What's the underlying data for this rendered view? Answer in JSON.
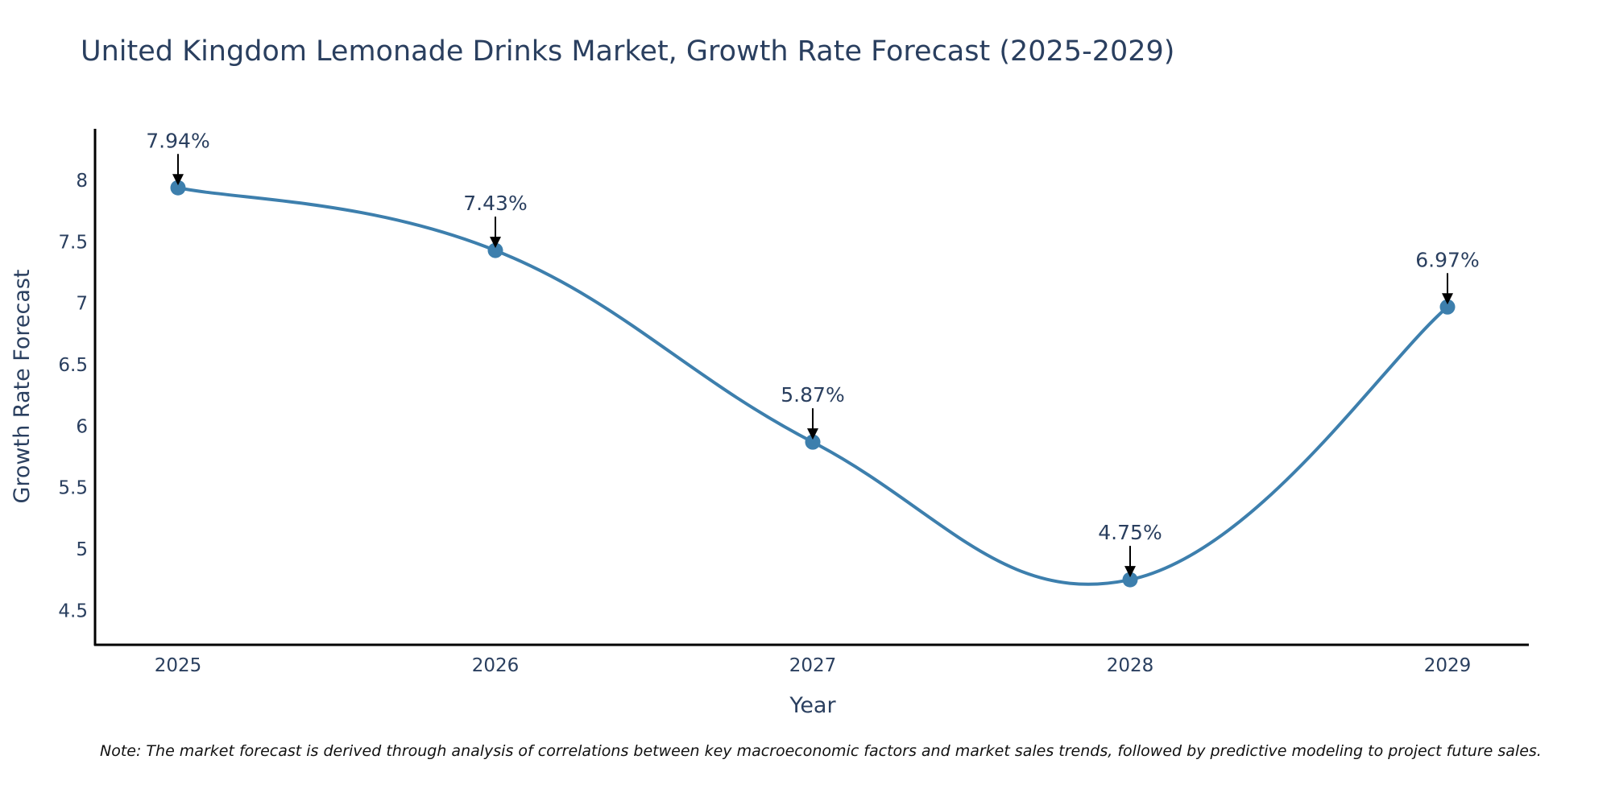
{
  "chart_data": {
    "type": "line",
    "title": "United Kingdom Lemonade Drinks Market, Growth Rate Forecast (2025-2029)",
    "xlabel": "Year",
    "ylabel": "Growth Rate Forecast",
    "categories": [
      "2025",
      "2026",
      "2027",
      "2028",
      "2029"
    ],
    "series": [
      {
        "name": "Growth Rate Forecast",
        "values": [
          7.94,
          7.43,
          5.87,
          4.75,
          6.97
        ],
        "color": "#3d7fad"
      }
    ],
    "data_labels": [
      "7.94%",
      "7.43%",
      "5.87%",
      "4.75%",
      "6.97%"
    ],
    "yticks": [
      4.5,
      5,
      5.5,
      6,
      6.5,
      7,
      7.5,
      8
    ],
    "ytick_labels": [
      "4.5",
      "5",
      "5.5",
      "6",
      "6.5",
      "7",
      "7.5",
      "8"
    ],
    "ylim": [
      4.22,
      8.42
    ],
    "grid": false,
    "note": "Note: The market forecast is derived through analysis of correlations between key macroeconomic factors and market sales trends, followed by predictive modeling to project future sales."
  }
}
